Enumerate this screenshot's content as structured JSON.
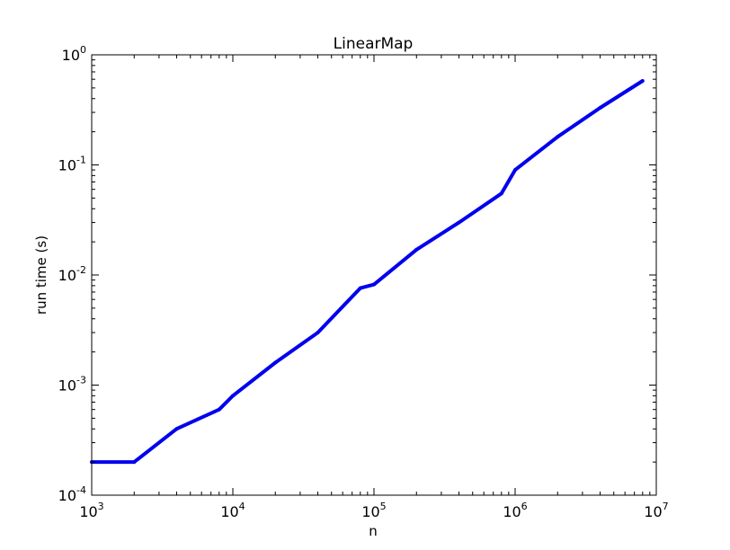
{
  "chart_data": {
    "type": "line",
    "title": "LinearMap",
    "xlabel": "n",
    "ylabel": "run time (s)",
    "xscale": "log",
    "yscale": "log",
    "xlim": [
      1000,
      10000000
    ],
    "ylim": [
      0.0001,
      1
    ],
    "grid": false,
    "xticks": [
      {
        "value": 1000,
        "base": "10",
        "exp": "3"
      },
      {
        "value": 10000,
        "base": "10",
        "exp": "4"
      },
      {
        "value": 100000,
        "base": "10",
        "exp": "5"
      },
      {
        "value": 1000000,
        "base": "10",
        "exp": "6"
      },
      {
        "value": 10000000,
        "base": "10",
        "exp": "7"
      }
    ],
    "yticks": [
      {
        "value": 0.0001,
        "base": "10",
        "exp": "-4"
      },
      {
        "value": 0.001,
        "base": "10",
        "exp": "-3"
      },
      {
        "value": 0.01,
        "base": "10",
        "exp": "-2"
      },
      {
        "value": 0.1,
        "base": "10",
        "exp": "-1"
      },
      {
        "value": 1,
        "base": "10",
        "exp": "0"
      }
    ],
    "series": [
      {
        "name": "LinearMap",
        "color": "#0000ee",
        "x": [
          1000,
          2000,
          4000,
          8000,
          10000,
          20000,
          40000,
          80000,
          100000,
          200000,
          400000,
          800000,
          1000000,
          2000000,
          4000000,
          8000000
        ],
        "y": [
          0.0002,
          0.0002,
          0.0004,
          0.0006,
          0.0008,
          0.0016,
          0.003,
          0.0076,
          0.0082,
          0.017,
          0.03,
          0.055,
          0.09,
          0.18,
          0.33,
          0.58
        ]
      }
    ]
  }
}
